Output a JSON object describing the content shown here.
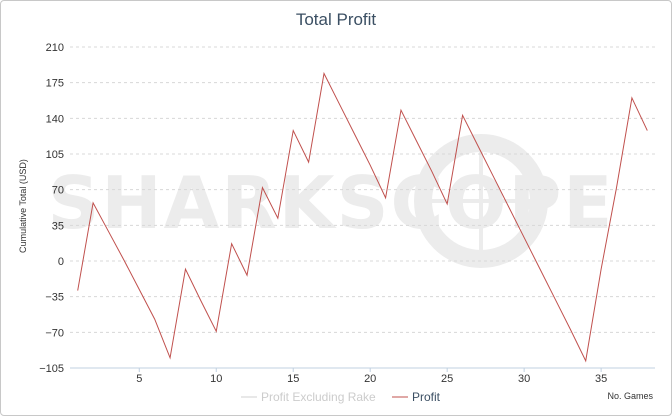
{
  "chart_data": {
    "type": "line",
    "title": "Total Profit",
    "ylabel": "Cumulative Total (USD)",
    "xlabel": "No. Games",
    "watermark": "SHARKSCOPE",
    "xlim": [
      0.5,
      38.5
    ],
    "ylim": [
      -105,
      210
    ],
    "xticks": [
      5,
      10,
      15,
      20,
      25,
      30,
      35
    ],
    "yticks": [
      -105,
      -70,
      -35,
      0,
      35,
      70,
      105,
      140,
      175,
      210
    ],
    "grid": true,
    "legend_position": "bottom-center",
    "series": [
      {
        "name": "Profit Excluding Rake",
        "color": "#d0d0d0",
        "visible": false,
        "values": []
      },
      {
        "name": "Profit",
        "color": "#c0504d",
        "visible": true,
        "x": [
          1,
          2,
          3,
          4,
          5,
          6,
          7,
          8,
          9,
          10,
          11,
          12,
          13,
          14,
          15,
          16,
          17,
          18,
          19,
          20,
          21,
          22,
          23,
          24,
          25,
          26,
          27,
          28,
          29,
          30,
          31,
          32,
          33,
          34,
          35,
          36,
          37,
          38
        ],
        "values": [
          -29,
          57,
          29,
          1,
          -28,
          -57,
          -95,
          -8,
          -39,
          -69,
          17,
          -14,
          72,
          42,
          128,
          97,
          184,
          154,
          124,
          94,
          62,
          148,
          118,
          88,
          56,
          143,
          113,
          83,
          53,
          23,
          -7,
          -37,
          -67,
          -98,
          -8,
          72,
          160,
          128
        ]
      }
    ]
  }
}
